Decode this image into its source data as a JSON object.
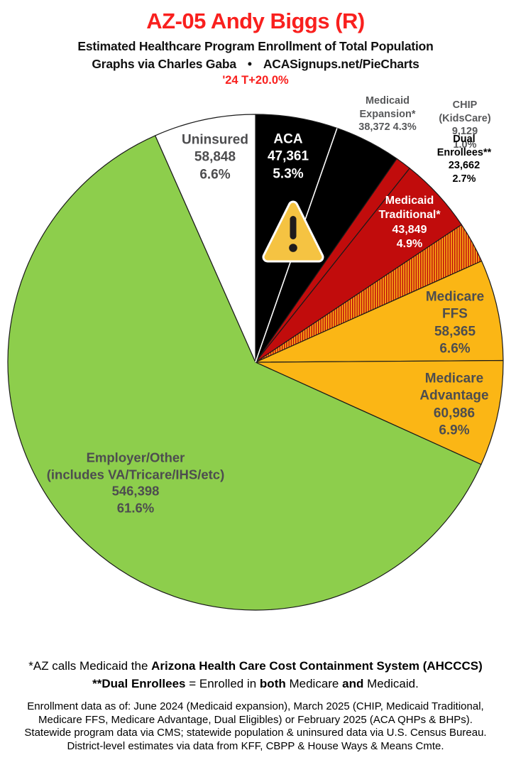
{
  "header": {
    "title": "AZ-05 Andy Biggs (R)",
    "subtitle": "Estimated Healthcare Program Enrollment of Total Population",
    "byline_left": "Graphs via Charles Gaba",
    "byline_bullet": "•",
    "byline_right": "ACASignups.net/PieCharts",
    "trend": "'24 T+20.0%",
    "title_color": "#F9201E",
    "trend_color": "#F9201E"
  },
  "chart_data": {
    "type": "pie",
    "title": "Estimated Healthcare Program Enrollment of Total Population",
    "start_angle_deg": -90,
    "direction": "clockwise",
    "total": 886970,
    "outline_color": "#1A1A1A",
    "divider_after_slice": 0,
    "divider_color": "#FFFFFF",
    "slices": [
      {
        "name": "ACA",
        "value": 47361,
        "pct": 5.3,
        "color": "#000000"
      },
      {
        "name": "Medicaid Expansion*",
        "value": 38372,
        "pct": 4.3,
        "color": "#000000"
      },
      {
        "name": "CHIP (KidsCare)",
        "value": 9129,
        "pct": 1.0,
        "color": "#C10C0C"
      },
      {
        "name": "Medicaid Traditional*",
        "value": 43849,
        "pct": 4.9,
        "color": "#C10C0C"
      },
      {
        "name": "Dual Enrollees**",
        "value": 23662,
        "pct": 2.7,
        "pattern_stripes": [
          "#C10C0C",
          "#FBB615"
        ]
      },
      {
        "name": "Medicare FFS",
        "value": 58365,
        "pct": 6.6,
        "color": "#FBB615"
      },
      {
        "name": "Medicare Advantage",
        "value": 60986,
        "pct": 6.9,
        "color": "#FBB615"
      },
      {
        "name": "Employer/Other (includes VA/Tricare/IHS/etc)",
        "value": 546398,
        "pct": 61.6,
        "color": "#8DCE4C"
      },
      {
        "name": "Uninsured",
        "value": 58848,
        "pct": 6.6,
        "color": "#FFFFFF"
      }
    ]
  },
  "labels": {
    "uninsured": "Uninsured\n58,848\n6.6%",
    "aca": "ACA\n47,361\n5.3%",
    "expansion": "Medicaid\nExpansion*\n38,372 4.3%",
    "chip": "CHIP (KidsCare)\n9,129 1.0%",
    "dual": "Dual Enrollees**\n23,662 2.7%",
    "traditional": "Medicaid\nTraditional*\n43,849\n4.9%",
    "ffs": "Medicare FFS\n58,365\n6.6%",
    "advantage": "Medicare\nAdvantage\n60,986\n6.9%",
    "employer": "Employer/Other\n(includes VA/Tricare/IHS/etc)\n546,398\n61.6%"
  },
  "icons": {
    "warning": "warning-triangle"
  },
  "footnotes": {
    "ahcccs": [
      "*AZ calls Medicaid the ",
      "Arizona Health Care Cost Containment System (AHCCCS)"
    ],
    "dual": [
      "**Dual Enrollees",
      " = Enrolled in ",
      "both",
      " Medicare ",
      "and",
      " Medicaid."
    ],
    "sources": "Enrollment data as of: June 2024 (Medicaid expansion), March 2025 (CHIP, Medicaid Traditional,\nMedicare FFS, Medicare Advantage, Dual Eligibles) or February 2025 (ACA QHPs & BHPs).\nStatewide program data via CMS; statewide population & uninsured data via U.S. Census Bureau.\nDistrict-level estimates via data from KFF, CBPP & House Ways & Means Cmte."
  }
}
